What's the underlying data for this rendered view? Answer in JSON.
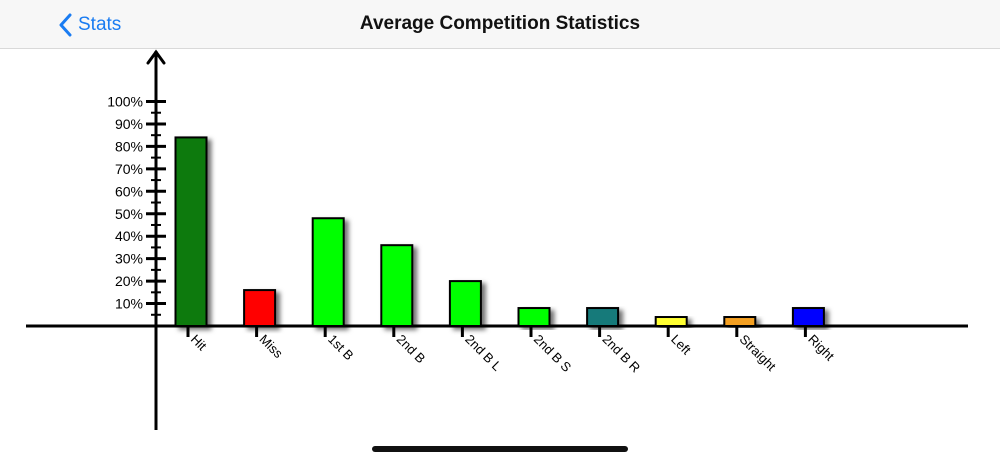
{
  "nav": {
    "back_label": "Stats",
    "title": "Average Competition Statistics"
  },
  "icons": {
    "back": "chevron-left-icon"
  },
  "colors": {
    "accent": "#1a7cf2"
  },
  "chart_data": {
    "type": "bar",
    "categories": [
      "Hit",
      "Miss",
      "1st B",
      "2nd B",
      "2nd B L",
      "2nd B S",
      "2nd B R",
      "Left",
      "Straight",
      "Right"
    ],
    "values": [
      84,
      16,
      48,
      36,
      20,
      8,
      8,
      4,
      4,
      8
    ],
    "colors": [
      "#0a7a0a",
      "#ff0000",
      "#00ff00",
      "#00ff00",
      "#00ff00",
      "#00ff00",
      "#127a7a",
      "#ffff33",
      "#f4a024",
      "#0000ff"
    ],
    "y_ticks": [
      "10%",
      "20%",
      "30%",
      "40%",
      "50%",
      "60%",
      "70%",
      "80%",
      "90%",
      "100%"
    ],
    "ylim": [
      0,
      100
    ],
    "unit": "%",
    "title": "",
    "xlabel": "",
    "ylabel": "",
    "grid": false,
    "legend": "none"
  }
}
